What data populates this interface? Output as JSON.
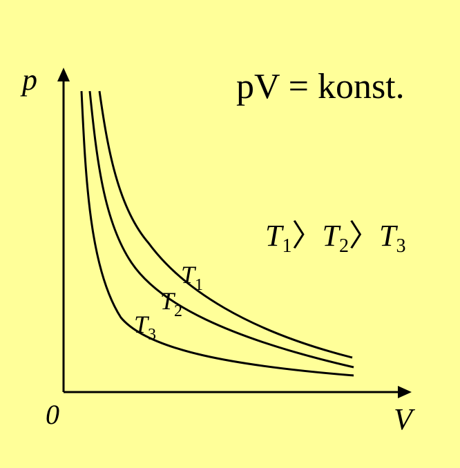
{
  "axes": {
    "y_label": "p",
    "x_label": "V",
    "origin_label": "0"
  },
  "equation": "pV = konst.",
  "order_relation": {
    "t1": "T",
    "t1_sub": "1",
    "sep1": "〉",
    "t2": "T",
    "t2_sub": "2",
    "sep2": "〉",
    "t3": "T",
    "t3_sub": "3"
  },
  "curves": [
    {
      "name": "T",
      "sub": "1"
    },
    {
      "name": "T",
      "sub": "2"
    },
    {
      "name": "T",
      "sub": "3"
    }
  ],
  "colors": {
    "background": "#FFFF99",
    "ink": "#000000"
  }
}
